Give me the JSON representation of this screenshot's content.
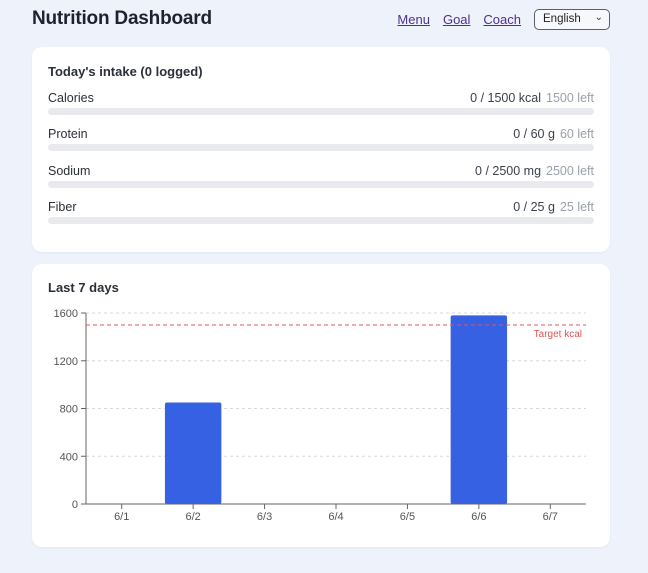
{
  "header": {
    "title": "Nutrition Dashboard",
    "nav": [
      "Menu",
      "Goal",
      "Coach"
    ],
    "language": "English"
  },
  "intake": {
    "title": "Today's intake (0 logged)",
    "nutrients": [
      {
        "name": "Calories",
        "amount": "0 / 1500 kcal",
        "left": "1500 left",
        "progress": 0
      },
      {
        "name": "Protein",
        "amount": "0 / 60 g",
        "left": "60 left",
        "progress": 0
      },
      {
        "name": "Sodium",
        "amount": "0 / 2500 mg",
        "left": "2500 left",
        "progress": 0
      },
      {
        "name": "Fiber",
        "amount": "0 / 25 g",
        "left": "25 left",
        "progress": 0
      }
    ]
  },
  "history": {
    "title": "Last 7 days"
  },
  "chart_data": {
    "type": "bar",
    "categories": [
      "6/1",
      "6/2",
      "6/3",
      "6/4",
      "6/5",
      "6/6",
      "6/7"
    ],
    "values": [
      0,
      850,
      0,
      0,
      0,
      1580,
      0
    ],
    "yticks": [
      0,
      400,
      800,
      1200,
      1600
    ],
    "ylim": [
      0,
      1600
    ],
    "target": {
      "value": 1500,
      "label": "Target kcal"
    },
    "grid": true,
    "bar_color": "#3661e3",
    "target_color": "#e05555"
  }
}
